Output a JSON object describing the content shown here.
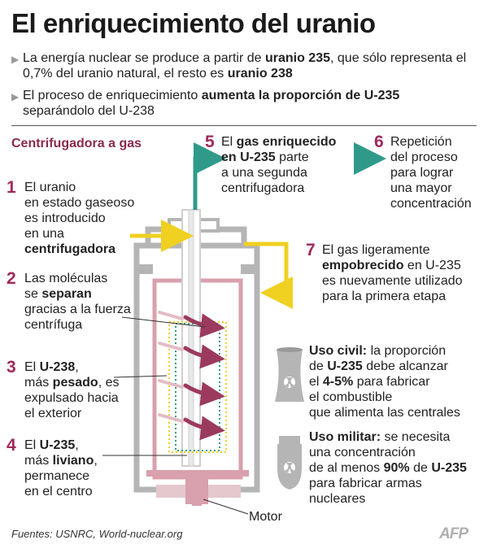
{
  "title": "El enriquecimiento del uranio",
  "bullets": [
    {
      "parts": [
        {
          "t": "La energía nuclear se produce a partir de ",
          "b": false
        },
        {
          "t": "uranio 235",
          "b": true
        },
        {
          "t": ", que sólo representa el 0,7% del uranio natural, el resto es ",
          "b": false
        },
        {
          "t": "uranio 238",
          "b": true
        }
      ]
    },
    {
      "parts": [
        {
          "t": "El proceso de enriquecimiento ",
          "b": false
        },
        {
          "t": "aumenta la proporción de U-235",
          "b": true
        },
        {
          "t": " separándolo del U-238",
          "b": false
        }
      ]
    }
  ],
  "section_title": "Centrifugadora a gas",
  "steps": [
    {
      "num": "1",
      "lines": [
        [
          {
            "t": "El uranio",
            "b": false
          }
        ],
        [
          {
            "t": "en estado gaseoso",
            "b": false
          }
        ],
        [
          {
            "t": "es introducido",
            "b": false
          }
        ],
        [
          {
            "t": "en una",
            "b": false
          }
        ],
        [
          {
            "t": "centrifugadora",
            "b": true
          }
        ]
      ]
    },
    {
      "num": "2",
      "lines": [
        [
          {
            "t": "Las moléculas",
            "b": false
          }
        ],
        [
          {
            "t": "se ",
            "b": false
          },
          {
            "t": "separan",
            "b": true
          }
        ],
        [
          {
            "t": "gracias a la fuerza",
            "b": false
          }
        ],
        [
          {
            "t": "centrífuga",
            "b": false
          }
        ]
      ]
    },
    {
      "num": "3",
      "lines": [
        [
          {
            "t": "El ",
            "b": false
          },
          {
            "t": "U-238",
            "b": true
          },
          {
            "t": ",",
            "b": false
          }
        ],
        [
          {
            "t": "más ",
            "b": false
          },
          {
            "t": "pesado",
            "b": true
          },
          {
            "t": ", es",
            "b": false
          }
        ],
        [
          {
            "t": "expulsado hacia",
            "b": false
          }
        ],
        [
          {
            "t": "el exterior",
            "b": false
          }
        ]
      ]
    },
    {
      "num": "4",
      "lines": [
        [
          {
            "t": "El ",
            "b": false
          },
          {
            "t": "U-235",
            "b": true
          },
          {
            "t": ",",
            "b": false
          }
        ],
        [
          {
            "t": "más ",
            "b": false
          },
          {
            "t": "liviano",
            "b": true
          },
          {
            "t": ",",
            "b": false
          }
        ],
        [
          {
            "t": "permanece",
            "b": false
          }
        ],
        [
          {
            "t": "en el centro",
            "b": false
          }
        ]
      ]
    },
    {
      "num": "5",
      "lines": [
        [
          {
            "t": "El ",
            "b": false
          },
          {
            "t": "gas enriquecido",
            "b": true
          }
        ],
        [
          {
            "t": "en U-235",
            "b": true
          },
          {
            "t": " parte",
            "b": false
          }
        ],
        [
          {
            "t": "a una segunda",
            "b": false
          }
        ],
        [
          {
            "t": "centrifugadora",
            "b": false
          }
        ]
      ]
    },
    {
      "num": "6",
      "lines": [
        [
          {
            "t": "Repetición",
            "b": false
          }
        ],
        [
          {
            "t": "del proceso",
            "b": false
          }
        ],
        [
          {
            "t": "para lograr",
            "b": false
          }
        ],
        [
          {
            "t": "una mayor",
            "b": false
          }
        ],
        [
          {
            "t": "concentración",
            "b": false
          }
        ]
      ]
    },
    {
      "num": "7",
      "lines": [
        [
          {
            "t": "El gas ligeramente",
            "b": false
          }
        ],
        [
          {
            "t": "empobrecido",
            "b": true
          },
          {
            "t": " en U-235",
            "b": false
          }
        ],
        [
          {
            "t": "es nuevamente utilizado",
            "b": false
          }
        ],
        [
          {
            "t": "para la primera etapa",
            "b": false
          }
        ]
      ]
    }
  ],
  "civil": {
    "lines": [
      [
        {
          "t": "Uso civil:",
          "b": true
        },
        {
          "t": " la proporción",
          "b": false
        }
      ],
      [
        {
          "t": "de ",
          "b": false
        },
        {
          "t": "U-235",
          "b": true
        },
        {
          "t": " debe alcanzar",
          "b": false
        }
      ],
      [
        {
          "t": "el ",
          "b": false
        },
        {
          "t": "4-5%",
          "b": true
        },
        {
          "t": " para fabricar",
          "b": false
        }
      ],
      [
        {
          "t": "el combustible",
          "b": false
        }
      ],
      [
        {
          "t": "que alimenta las centrales",
          "b": false
        }
      ]
    ]
  },
  "military": {
    "lines": [
      [
        {
          "t": "Uso militar:",
          "b": true
        },
        {
          "t": " se necesita",
          "b": false
        }
      ],
      [
        {
          "t": "una concentración",
          "b": false
        }
      ],
      [
        {
          "t": "de al menos ",
          "b": false
        },
        {
          "t": "90%",
          "b": true
        },
        {
          "t": " de ",
          "b": false
        },
        {
          "t": "U-235",
          "b": true
        }
      ],
      [
        {
          "t": "para fabricar armas",
          "b": false
        }
      ],
      [
        {
          "t": "nucleares",
          "b": false
        }
      ]
    ]
  },
  "motor_label": "Motor",
  "footer": "Fuentes: USNRC, World-nuclear.org",
  "logo": "AFP",
  "colors": {
    "accent": "#a0295a",
    "teal": "#2f9a8a",
    "yellow": "#f0d020",
    "rotor": "#d9a0ad",
    "arrow": "#9b3a5e",
    "grey": "#b5b5b5"
  },
  "icons": [
    "nuclear-tower-icon",
    "nuclear-bomb-icon",
    "radiation-icon"
  ]
}
